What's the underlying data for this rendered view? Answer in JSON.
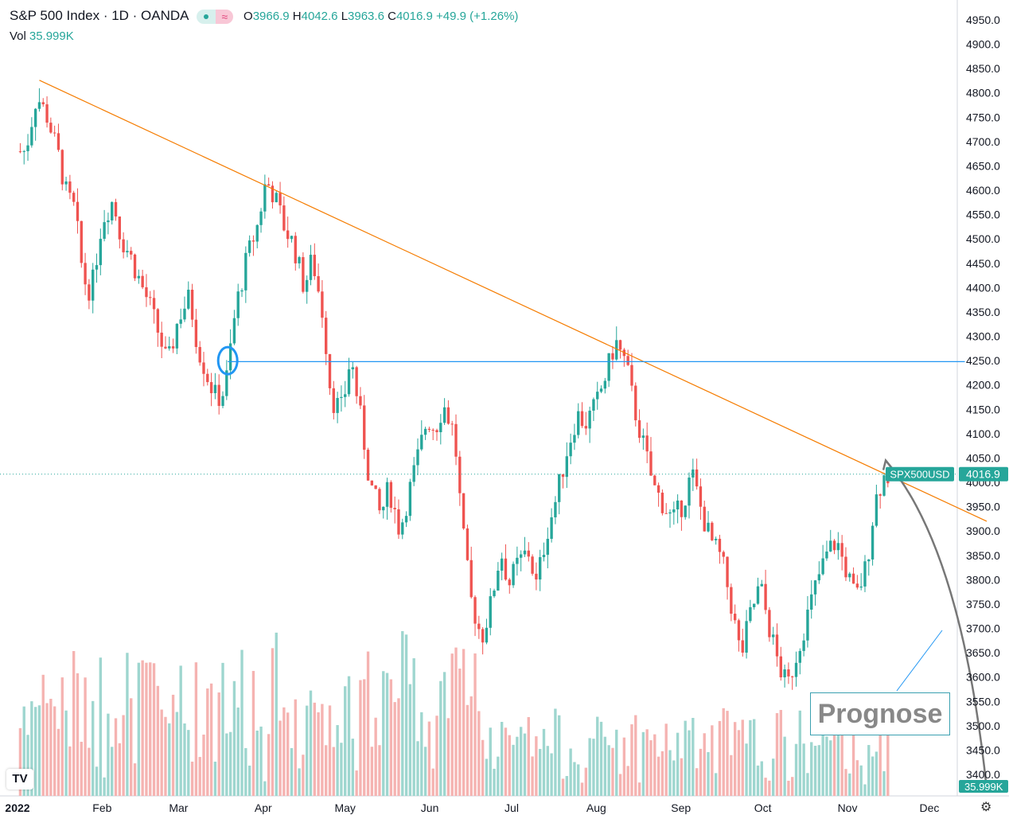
{
  "legend": {
    "title": "S&P 500 Index · 1D · OANDA",
    "o_label": "O",
    "o_value": "3966.9",
    "h_label": "H",
    "h_value": "4042.6",
    "l_label": "L",
    "l_value": "3963.6",
    "c_label": "C",
    "c_value": "4016.9",
    "change": "+49.9 (+1.26%)",
    "vol_label": "Vol",
    "vol_value": "35.999K",
    "badge_wave": "≈"
  },
  "labels": {
    "symbol": "SPX500USD",
    "last_price": "4016.9",
    "last_volume": "35.999K",
    "prognose": "Prognose",
    "tv_logo": "TV"
  },
  "colors": {
    "up": "#26a69a",
    "down": "#ef5350",
    "up_volume": "#9ed6cf",
    "down_volume": "#f5b3b1",
    "trendline": "#f57c00",
    "support": "#2196f3",
    "prognose_curve": "#777777",
    "prognose_pointer": "#2196f3"
  },
  "chart_data": {
    "type": "candlestick",
    "title": "S&P 500 Index · 1D · OANDA",
    "yaxis": {
      "range": [
        3350,
        4980
      ],
      "ticks": [
        4950,
        4900,
        4850,
        4800,
        4750,
        4700,
        4650,
        4600,
        4550,
        4500,
        4450,
        4400,
        4350,
        4300,
        4250,
        4200,
        4150,
        4100,
        4050,
        4000,
        3950,
        3900,
        3850,
        3800,
        3750,
        3700,
        3650,
        3600,
        3550,
        3500,
        3450,
        3400
      ],
      "tick_labels": [
        "4950.0",
        "4900.0",
        "4850.0",
        "4800.0",
        "4750.0",
        "4700.0",
        "4650.0",
        "4600.0",
        "4550.0",
        "4500.0",
        "4450.0",
        "4400.0",
        "4350.0",
        "4300.0",
        "4250.0",
        "4200.0",
        "4150.0",
        "4100.0",
        "4050.0",
        "4000.0",
        "3950.0",
        "3900.0",
        "3850.0",
        "3800.0",
        "3750.0",
        "3700.0",
        "3650.0",
        "3600.0",
        "3550.0",
        "3500.0",
        "3450.0",
        "3400.0"
      ]
    },
    "xaxis": {
      "months": [
        {
          "label": "2022",
          "day": 0
        },
        {
          "label": "Feb",
          "day": 31
        },
        {
          "label": "Mar",
          "day": 59
        },
        {
          "label": "Apr",
          "day": 90
        },
        {
          "label": "May",
          "day": 120
        },
        {
          "label": "Jun",
          "day": 151
        },
        {
          "label": "Jul",
          "day": 181
        },
        {
          "label": "Aug",
          "day": 212
        },
        {
          "label": "Sep",
          "day": 243
        },
        {
          "label": "Oct",
          "day": 273
        },
        {
          "label": "Nov",
          "day": 304
        },
        {
          "label": "Dec",
          "day": 334
        }
      ],
      "range_days": [
        0,
        355
      ]
    },
    "last_price": 4016.9,
    "trendline": {
      "start": {
        "day": 8,
        "price": 4826
      },
      "end": {
        "day": 355,
        "price": 3920
      }
    },
    "support_line": {
      "start_day": 77,
      "end_day": 347,
      "price": 4248
    },
    "support_marker": {
      "day": 77,
      "price": 4250
    },
    "prognose": {
      "start": {
        "day": 318,
        "price": 4045
      },
      "end": {
        "day": 355,
        "price": 3370
      }
    },
    "price_path": [
      [
        3,
        4680
      ],
      [
        7,
        4795
      ],
      [
        11,
        4750
      ],
      [
        15,
        4670
      ],
      [
        18,
        4590
      ],
      [
        21,
        4560
      ],
      [
        24,
        4420
      ],
      [
        27,
        4390
      ],
      [
        31,
        4540
      ],
      [
        35,
        4580
      ],
      [
        38,
        4500
      ],
      [
        41,
        4470
      ],
      [
        45,
        4410
      ],
      [
        48,
        4370
      ],
      [
        52,
        4300
      ],
      [
        55,
        4240
      ],
      [
        59,
        4340
      ],
      [
        63,
        4380
      ],
      [
        66,
        4280
      ],
      [
        70,
        4210
      ],
      [
        73,
        4170
      ],
      [
        76,
        4190
      ],
      [
        80,
        4360
      ],
      [
        84,
        4460
      ],
      [
        88,
        4530
      ],
      [
        91,
        4620
      ],
      [
        94,
        4590
      ],
      [
        98,
        4520
      ],
      [
        101,
        4490
      ],
      [
        105,
        4400
      ],
      [
        108,
        4460
      ],
      [
        112,
        4340
      ],
      [
        115,
        4170
      ],
      [
        119,
        4150
      ],
      [
        122,
        4260
      ],
      [
        126,
        4120
      ],
      [
        129,
        4000
      ],
      [
        133,
        3930
      ],
      [
        136,
        3990
      ],
      [
        140,
        3900
      ],
      [
        143,
        3970
      ],
      [
        147,
        4060
      ],
      [
        150,
        4130
      ],
      [
        153,
        4110
      ],
      [
        156,
        4160
      ],
      [
        160,
        4100
      ],
      [
        163,
        3900
      ],
      [
        166,
        3760
      ],
      [
        170,
        3680
      ],
      [
        173,
        3740
      ],
      [
        177,
        3860
      ],
      [
        180,
        3790
      ],
      [
        183,
        3830
      ],
      [
        187,
        3860
      ],
      [
        190,
        3790
      ],
      [
        194,
        3900
      ],
      [
        197,
        3960
      ],
      [
        201,
        4060
      ],
      [
        205,
        4140
      ],
      [
        208,
        4120
      ],
      [
        212,
        4160
      ],
      [
        216,
        4230
      ],
      [
        219,
        4290
      ],
      [
        223,
        4240
      ],
      [
        226,
        4150
      ],
      [
        230,
        4060
      ],
      [
        233,
        3990
      ],
      [
        237,
        3950
      ],
      [
        240,
        3920
      ],
      [
        244,
        3960
      ],
      [
        247,
        4020
      ],
      [
        251,
        3930
      ],
      [
        254,
        3880
      ],
      [
        258,
        3840
      ],
      [
        261,
        3760
      ],
      [
        265,
        3640
      ],
      [
        268,
        3720
      ],
      [
        272,
        3790
      ],
      [
        275,
        3710
      ],
      [
        279,
        3620
      ],
      [
        282,
        3580
      ],
      [
        286,
        3660
      ],
      [
        290,
        3740
      ],
      [
        293,
        3800
      ],
      [
        297,
        3860
      ],
      [
        300,
        3880
      ],
      [
        304,
        3810
      ],
      [
        307,
        3760
      ],
      [
        311,
        3830
      ],
      [
        314,
        3960
      ],
      [
        317,
        4010
      ],
      [
        320,
        4017
      ]
    ]
  }
}
